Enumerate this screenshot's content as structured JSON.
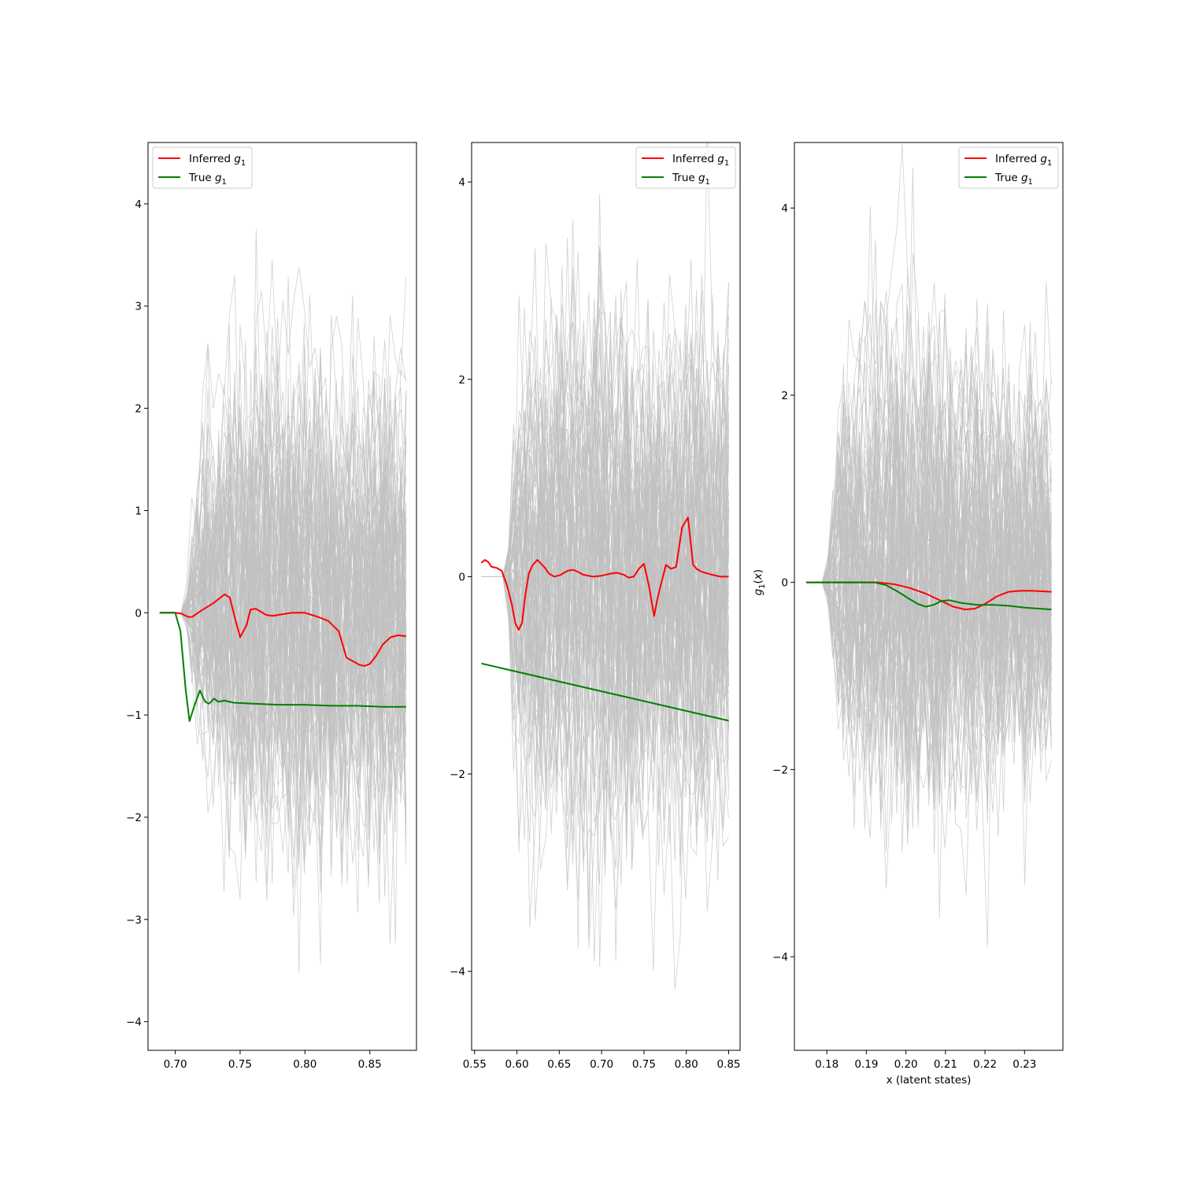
{
  "chart_data": [
    {
      "type": "line",
      "title": "",
      "xlabel": "",
      "ylabel": "",
      "xlim": [
        0.679,
        0.886
      ],
      "ylim": [
        -4.28,
        4.6
      ],
      "xticks": [
        0.7,
        0.75,
        0.8,
        0.85
      ],
      "xtick_labels": [
        "0.70",
        "0.75",
        "0.80",
        "0.85"
      ],
      "yticks": [
        -4,
        -3,
        -2,
        -1,
        0,
        1,
        2,
        3,
        4
      ],
      "ytick_labels": [
        "−4",
        "−3",
        "−2",
        "−1",
        "0",
        "1",
        "2",
        "3",
        "4"
      ],
      "legend": {
        "placement": "top-left",
        "entries": [
          "Inferred g1",
          "True g1"
        ]
      },
      "samples": {
        "color": "#c0c0c0",
        "x_range": [
          0.688,
          0.878
        ],
        "count": 90,
        "flat_until": 0.708,
        "segment_breaks": [
          0.817
        ],
        "envelope": [
          [
            0.708,
            0.05
          ],
          [
            0.72,
            1.0
          ],
          [
            0.74,
            1.3
          ],
          [
            0.77,
            1.55
          ],
          [
            0.8,
            1.6
          ],
          [
            0.817,
            1.5
          ],
          [
            0.83,
            1.35
          ],
          [
            0.878,
            1.4
          ]
        ]
      },
      "series": [
        {
          "name": "Inferred g1",
          "color": "#ff0000",
          "x": [
            0.688,
            0.7,
            0.705,
            0.71,
            0.713,
            0.72,
            0.73,
            0.738,
            0.742,
            0.745,
            0.75,
            0.755,
            0.758,
            0.762,
            0.766,
            0.77,
            0.775,
            0.78,
            0.79,
            0.8,
            0.81,
            0.818,
            0.822,
            0.826,
            0.832,
            0.838,
            0.842,
            0.846,
            0.85,
            0.855,
            0.86,
            0.866,
            0.872,
            0.878
          ],
          "y": [
            0,
            0,
            -0.01,
            -0.04,
            -0.04,
            0.02,
            0.1,
            0.18,
            0.15,
            0.0,
            -0.24,
            -0.12,
            0.03,
            0.04,
            0.01,
            -0.02,
            -0.03,
            -0.02,
            0.0,
            0.0,
            -0.04,
            -0.08,
            -0.13,
            -0.18,
            -0.44,
            -0.48,
            -0.51,
            -0.52,
            -0.5,
            -0.42,
            -0.31,
            -0.24,
            -0.22,
            -0.23
          ]
        },
        {
          "name": "True g1",
          "color": "#008000",
          "x": [
            0.688,
            0.7,
            0.704,
            0.708,
            0.711,
            0.715,
            0.719,
            0.723,
            0.726,
            0.73,
            0.733,
            0.738,
            0.745,
            0.76,
            0.78,
            0.8,
            0.82,
            0.84,
            0.86,
            0.878
          ],
          "y": [
            0,
            0,
            -0.18,
            -0.75,
            -1.06,
            -0.9,
            -0.76,
            -0.87,
            -0.89,
            -0.84,
            -0.87,
            -0.86,
            -0.88,
            -0.89,
            -0.9,
            -0.9,
            -0.91,
            -0.91,
            -0.92,
            -0.92
          ]
        }
      ]
    },
    {
      "type": "line",
      "title": "",
      "xlabel": "",
      "ylabel": "",
      "xlim": [
        0.5465,
        0.8635
      ],
      "ylim": [
        -4.8,
        4.4
      ],
      "xticks": [
        0.55,
        0.6,
        0.65,
        0.7,
        0.75,
        0.8,
        0.85
      ],
      "xtick_labels": [
        "0.55",
        "0.60",
        "0.65",
        "0.70",
        "0.75",
        "0.80",
        "0.85"
      ],
      "yticks": [
        -4,
        -2,
        0,
        2,
        4
      ],
      "ytick_labels": [
        "−4",
        "−2",
        "0",
        "2",
        "4"
      ],
      "legend": {
        "placement": "top-right",
        "entries": [
          "Inferred g1",
          "True g1"
        ]
      },
      "samples": {
        "color": "#c0c0c0",
        "x_range": [
          0.558,
          0.85
        ],
        "count": 90,
        "flat_until": 0.588,
        "segment_breaks": [
          0.735
        ],
        "envelope": [
          [
            0.588,
            0.05
          ],
          [
            0.6,
            1.1
          ],
          [
            0.62,
            1.4
          ],
          [
            0.66,
            1.6
          ],
          [
            0.7,
            1.7
          ],
          [
            0.735,
            1.5
          ],
          [
            0.76,
            1.45
          ],
          [
            0.8,
            1.55
          ],
          [
            0.85,
            1.6
          ]
        ]
      },
      "series": [
        {
          "name": "Inferred g1",
          "color": "#ff0000",
          "x": [
            0.558,
            0.562,
            0.566,
            0.57,
            0.576,
            0.582,
            0.588,
            0.594,
            0.598,
            0.602,
            0.606,
            0.61,
            0.614,
            0.618,
            0.624,
            0.632,
            0.638,
            0.644,
            0.652,
            0.66,
            0.666,
            0.672,
            0.678,
            0.684,
            0.69,
            0.7,
            0.71,
            0.718,
            0.726,
            0.732,
            0.738,
            0.744,
            0.75,
            0.756,
            0.762,
            0.766,
            0.77,
            0.776,
            0.782,
            0.788,
            0.795,
            0.802,
            0.808,
            0.812,
            0.818,
            0.83,
            0.84,
            0.85
          ],
          "y": [
            0.14,
            0.17,
            0.15,
            0.1,
            0.09,
            0.06,
            -0.08,
            -0.28,
            -0.47,
            -0.54,
            -0.47,
            -0.18,
            0.03,
            0.11,
            0.17,
            0.1,
            0.03,
            0.0,
            0.02,
            0.06,
            0.07,
            0.05,
            0.02,
            0.01,
            0.0,
            0.01,
            0.03,
            0.04,
            0.02,
            -0.01,
            0.0,
            0.08,
            0.13,
            -0.1,
            -0.4,
            -0.22,
            -0.08,
            0.12,
            0.08,
            0.1,
            0.5,
            0.6,
            0.12,
            0.08,
            0.05,
            0.02,
            0.0,
            0.0
          ]
        },
        {
          "name": "True g1",
          "color": "#008000",
          "x": [
            0.558,
            0.85
          ],
          "y": [
            -0.88,
            -1.46
          ]
        }
      ]
    },
    {
      "type": "line",
      "title": "",
      "xlabel": "x (latent states)",
      "ylabel": "g1(x)",
      "xlim": [
        0.1718,
        0.2397
      ],
      "ylim": [
        -5.0,
        4.7
      ],
      "xticks": [
        0.18,
        0.19,
        0.2,
        0.21,
        0.22,
        0.23
      ],
      "xtick_labels": [
        "0.18",
        "0.19",
        "0.20",
        "0.21",
        "0.22",
        "0.23"
      ],
      "yticks": [
        -4,
        -2,
        0,
        2,
        4
      ],
      "ytick_labels": [
        "−4",
        "−2",
        "0",
        "2",
        "4"
      ],
      "legend": {
        "placement": "top-right",
        "entries": [
          "Inferred g1",
          "True g1"
        ]
      },
      "samples": {
        "color": "#c0c0c0",
        "x_range": [
          0.1748,
          0.2368
        ],
        "count": 90,
        "flat_until": 0.18,
        "segment_breaks": [
          0.211
        ],
        "envelope": [
          [
            0.18,
            0.05
          ],
          [
            0.183,
            1.1
          ],
          [
            0.19,
            1.5
          ],
          [
            0.2,
            1.65
          ],
          [
            0.211,
            1.5
          ],
          [
            0.22,
            1.4
          ],
          [
            0.2368,
            1.35
          ]
        ]
      },
      "series": [
        {
          "name": "Inferred g1",
          "color": "#ff0000",
          "x": [
            0.1748,
            0.186,
            0.193,
            0.197,
            0.201,
            0.205,
            0.209,
            0.212,
            0.215,
            0.2175,
            0.22,
            0.223,
            0.226,
            0.229,
            0.232,
            0.2368
          ],
          "y": [
            0,
            0,
            0,
            -0.02,
            -0.06,
            -0.12,
            -0.2,
            -0.26,
            -0.29,
            -0.28,
            -0.23,
            -0.15,
            -0.1,
            -0.09,
            -0.09,
            -0.1
          ]
        },
        {
          "name": "True g1",
          "color": "#008000",
          "x": [
            0.1748,
            0.186,
            0.192,
            0.195,
            0.198,
            0.201,
            0.203,
            0.205,
            0.207,
            0.209,
            0.211,
            0.214,
            0.218,
            0.222,
            0.226,
            0.23,
            0.2368
          ],
          "y": [
            0,
            0,
            0,
            -0.03,
            -0.1,
            -0.18,
            -0.23,
            -0.26,
            -0.24,
            -0.2,
            -0.19,
            -0.22,
            -0.24,
            -0.24,
            -0.25,
            -0.27,
            -0.29
          ]
        }
      ]
    }
  ]
}
